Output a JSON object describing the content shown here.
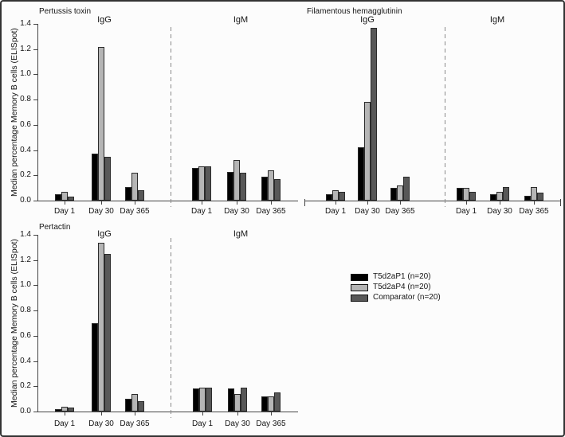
{
  "figure": {
    "y_axis_label": "Median percentage Memory B cells (ELISpot)",
    "y_ticks": [
      "0.0",
      "0.2",
      "0.4",
      "0.6",
      "0.8",
      "1.0",
      "1.2",
      "1.4"
    ],
    "categories": [
      "Day 1",
      "Day 30",
      "Day 365"
    ],
    "section_labels": [
      "IgG",
      "IgM"
    ],
    "grid": false,
    "legend_position": "center-right"
  },
  "legend": {
    "items": [
      {
        "label": "T5d2aP1 (n=20)",
        "color": "#000000"
      },
      {
        "label": "T5d2aP4 (n=20)",
        "color": "#b5b5b5"
      },
      {
        "label": "Comparator (n=20)",
        "color": "#585858"
      }
    ]
  },
  "chart_data": [
    {
      "type": "bar",
      "title": "Pertussis toxin",
      "ylabel": "Median percentage Memory B cells (ELISpot)",
      "ylim": [
        0,
        1.4
      ],
      "categories": [
        "Day 1",
        "Day 30",
        "Day 365"
      ],
      "sections": [
        {
          "label": "IgG",
          "series": [
            {
              "name": "T5d2aP1 (n=20)",
              "values": [
                0.05,
                0.37,
                0.11
              ]
            },
            {
              "name": "T5d2aP4 (n=20)",
              "values": [
                0.07,
                1.22,
                0.22
              ]
            },
            {
              "name": "Comparator (n=20)",
              "values": [
                0.03,
                0.35,
                0.08
              ]
            }
          ]
        },
        {
          "label": "IgM",
          "series": [
            {
              "name": "T5d2aP1 (n=20)",
              "values": [
                0.26,
                0.23,
                0.19
              ]
            },
            {
              "name": "T5d2aP4 (n=20)",
              "values": [
                0.27,
                0.32,
                0.24
              ]
            },
            {
              "name": "Comparator (n=20)",
              "values": [
                0.27,
                0.22,
                0.17
              ]
            }
          ]
        }
      ]
    },
    {
      "type": "bar",
      "title": "Filamentous hemagglutinin",
      "ylabel": "Median percentage Memory B cells (ELISpot)",
      "ylim": [
        0,
        1.4
      ],
      "categories": [
        "Day 1",
        "Day 30",
        "Day 365"
      ],
      "sections": [
        {
          "label": "IgG",
          "series": [
            {
              "name": "T5d2aP1 (n=20)",
              "values": [
                0.05,
                0.42,
                0.1
              ]
            },
            {
              "name": "T5d2aP4 (n=20)",
              "values": [
                0.08,
                0.78,
                0.12
              ]
            },
            {
              "name": "Comparator (n=20)",
              "values": [
                0.07,
                1.37,
                0.19
              ]
            }
          ]
        },
        {
          "label": "IgM",
          "series": [
            {
              "name": "T5d2aP1 (n=20)",
              "values": [
                0.1,
                0.05,
                0.04
              ]
            },
            {
              "name": "T5d2aP4 (n=20)",
              "values": [
                0.1,
                0.07,
                0.11
              ]
            },
            {
              "name": "Comparator (n=20)",
              "values": [
                0.07,
                0.11,
                0.06
              ]
            }
          ]
        }
      ]
    },
    {
      "type": "bar",
      "title": "Pertactin",
      "ylabel": "Median percentage Memory B cells (ELISpot)",
      "ylim": [
        0,
        1.4
      ],
      "categories": [
        "Day 1",
        "Day 30",
        "Day 365"
      ],
      "sections": [
        {
          "label": "IgG",
          "series": [
            {
              "name": "T5d2aP1 (n=20)",
              "values": [
                0.02,
                0.7,
                0.1
              ]
            },
            {
              "name": "T5d2aP4 (n=20)",
              "values": [
                0.04,
                1.34,
                0.14
              ]
            },
            {
              "name": "Comparator (n=20)",
              "values": [
                0.03,
                1.25,
                0.08
              ]
            }
          ]
        },
        {
          "label": "IgM",
          "series": [
            {
              "name": "T5d2aP1 (n=20)",
              "values": [
                0.18,
                0.18,
                0.12
              ]
            },
            {
              "name": "T5d2aP4 (n=20)",
              "values": [
                0.19,
                0.14,
                0.12
              ]
            },
            {
              "name": "Comparator (n=20)",
              "values": [
                0.19,
                0.19,
                0.15
              ]
            }
          ]
        }
      ]
    }
  ]
}
